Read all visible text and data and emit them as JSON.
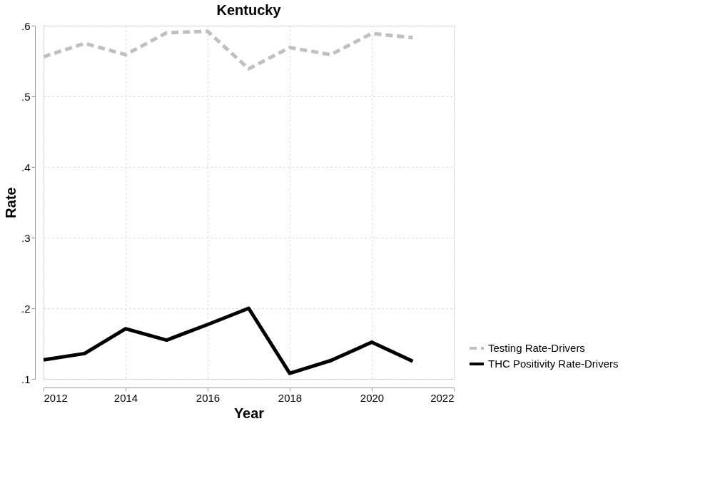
{
  "chart_data": {
    "type": "line",
    "title": "Kentucky",
    "xlabel": "Year",
    "ylabel": "Rate",
    "x": [
      2012,
      2013,
      2014,
      2015,
      2016,
      2017,
      2018,
      2019,
      2020,
      2021
    ],
    "series": [
      {
        "name": "Testing Rate-Drivers",
        "color": "#c0c0c0",
        "line_style": "dashed",
        "values": [
          0.556,
          0.575,
          0.559,
          0.59,
          0.592,
          0.539,
          0.569,
          0.559,
          0.589,
          0.583
        ]
      },
      {
        "name": "THC Positivity Rate-Drivers",
        "color": "#000000",
        "line_style": "solid",
        "values": [
          0.127,
          0.136,
          0.171,
          0.155,
          0.177,
          0.2,
          0.108,
          0.126,
          0.152,
          0.125
        ]
      }
    ],
    "xlim": [
      2012,
      2022
    ],
    "xticks": [
      2012,
      2014,
      2016,
      2018,
      2020,
      2022
    ],
    "ylim": [
      0.1,
      0.6
    ],
    "yticks": [
      {
        "value": 0.1,
        "label": ".1"
      },
      {
        "value": 0.2,
        "label": ".2"
      },
      {
        "value": 0.3,
        "label": ".3"
      },
      {
        "value": 0.4,
        "label": ".4"
      },
      {
        "value": 0.5,
        "label": ".5"
      },
      {
        "value": 0.6,
        "label": ".6"
      }
    ],
    "grid": true,
    "legend": "bottom right",
    "marker": "none"
  }
}
